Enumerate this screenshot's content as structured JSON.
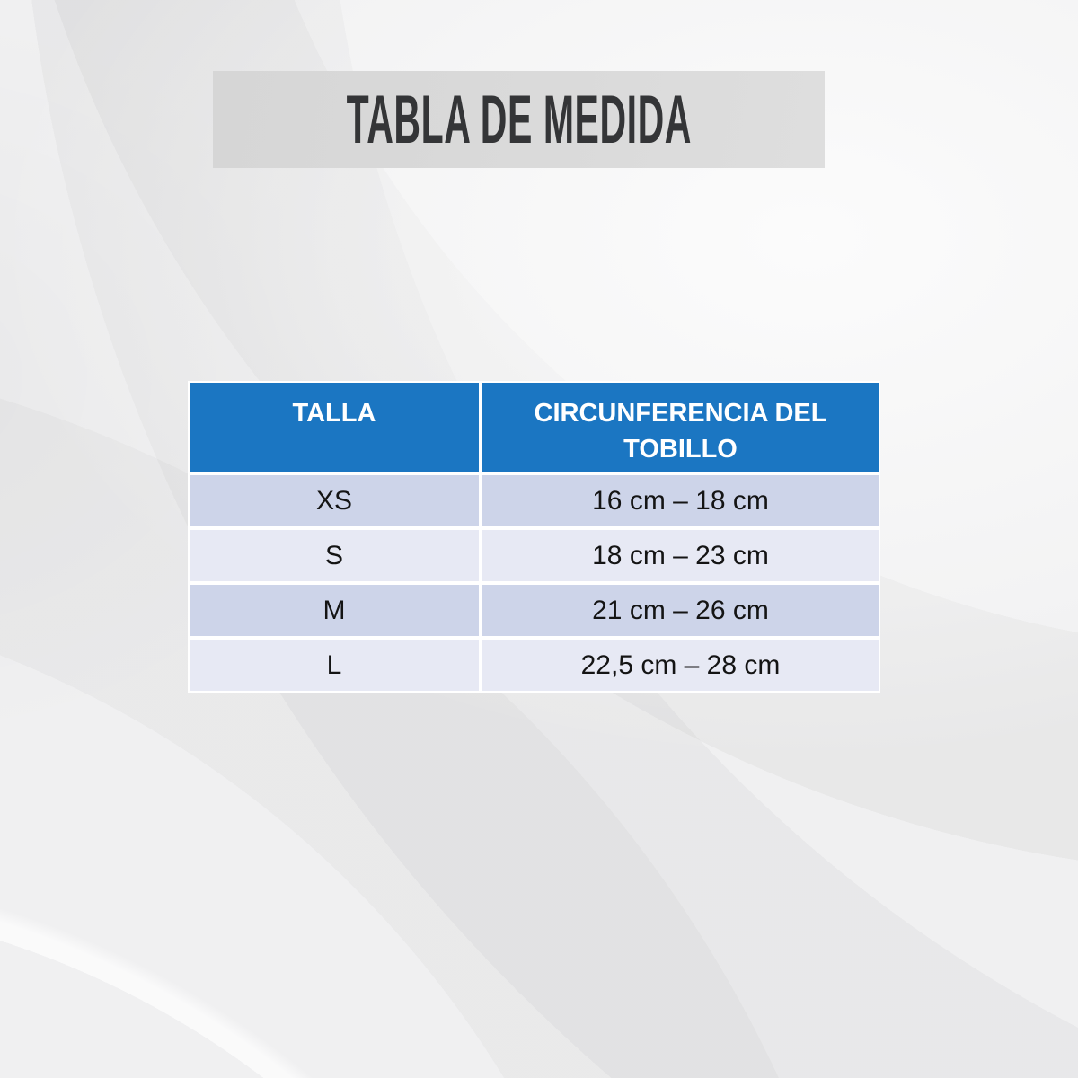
{
  "banner": {
    "title": "TABLA DE MEDIDA"
  },
  "table": {
    "columns": [
      "TALLA",
      "CIRCUNFERENCIA DEL TOBILLO"
    ],
    "rows": [
      {
        "talla": "XS",
        "circunferencia": "16 cm – 18 cm"
      },
      {
        "talla": "S",
        "circunferencia": "18 cm – 23 cm"
      },
      {
        "talla": "M",
        "circunferencia": "21 cm – 26 cm"
      },
      {
        "talla": "L",
        "circunferencia": "22,5 cm – 28 cm"
      }
    ]
  },
  "colors": {
    "header_blue": "#1b76c2",
    "row_dark": "#cdd4e9",
    "row_light": "#e7e9f4",
    "banner_gray": "#dadada",
    "background_gray": "#f0f0f1",
    "title_text": "#343537",
    "header_text": "#ffffff",
    "cell_text": "#141414"
  },
  "chart_data": {
    "type": "table",
    "title": "TABLA DE MEDIDA",
    "columns": [
      "TALLA",
      "CIRCUNFERENCIA DEL TOBILLO"
    ],
    "rows": [
      [
        "XS",
        "16 cm – 18 cm"
      ],
      [
        "S",
        "18 cm – 23 cm"
      ],
      [
        "M",
        "21 cm – 26 cm"
      ],
      [
        "L",
        "22,5 cm – 28 cm"
      ]
    ]
  }
}
